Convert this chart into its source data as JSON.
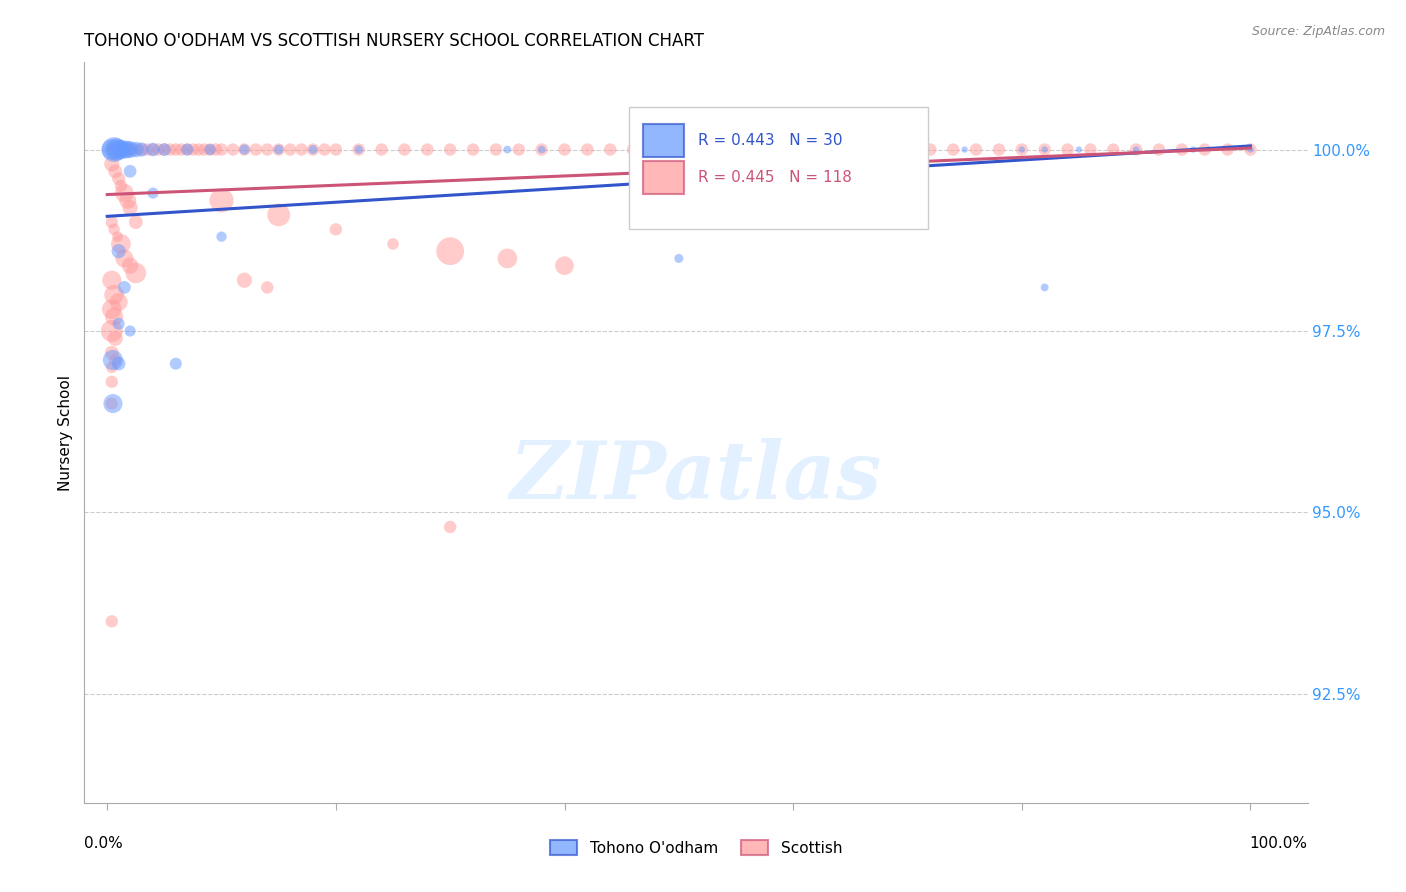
{
  "title": "TOHONO O'ODHAM VS SCOTTISH NURSERY SCHOOL CORRELATION CHART",
  "source": "Source: ZipAtlas.com",
  "ylabel": "Nursery School",
  "y_ticks": [
    92.5,
    95.0,
    97.5,
    100.0
  ],
  "y_tick_labels": [
    "92.5%",
    "95.0%",
    "97.5%",
    "100.0%"
  ],
  "xlim": [
    -0.02,
    1.05
  ],
  "ylim": [
    91.0,
    101.2
  ],
  "blue_R": 0.443,
  "blue_N": 30,
  "pink_R": 0.445,
  "pink_N": 118,
  "blue_color": "#6699ff",
  "pink_color": "#ff9999",
  "trend_blue": "#3355cc",
  "trend_pink": "#cc5577",
  "legend_blue": "Tohono O'odham",
  "legend_pink": "Scottish",
  "watermark": "ZIPatlas",
  "blue_trend_y0": 99.08,
  "blue_trend_y1": 100.05,
  "pink_trend_y0": 99.38,
  "pink_trend_y1": 100.02,
  "blue_points": [
    [
      0.004,
      100.0
    ],
    [
      0.006,
      100.0
    ],
    [
      0.008,
      100.0
    ],
    [
      0.009,
      100.0
    ],
    [
      0.012,
      100.0
    ],
    [
      0.015,
      100.0
    ],
    [
      0.018,
      100.0
    ],
    [
      0.02,
      100.0
    ],
    [
      0.025,
      100.0
    ],
    [
      0.03,
      100.0
    ],
    [
      0.04,
      100.0
    ],
    [
      0.05,
      100.0
    ],
    [
      0.07,
      100.0
    ],
    [
      0.09,
      100.0
    ],
    [
      0.12,
      100.0
    ],
    [
      0.15,
      100.0
    ],
    [
      0.18,
      100.0
    ],
    [
      0.22,
      100.0
    ],
    [
      0.35,
      100.0
    ],
    [
      0.38,
      100.0
    ],
    [
      0.6,
      100.0
    ],
    [
      0.65,
      100.0
    ],
    [
      0.7,
      100.0
    ],
    [
      0.75,
      100.0
    ],
    [
      0.8,
      100.0
    ],
    [
      0.82,
      100.0
    ],
    [
      0.85,
      100.0
    ],
    [
      0.9,
      100.0
    ],
    [
      0.95,
      100.0
    ],
    [
      1.0,
      100.0
    ],
    [
      0.02,
      99.7
    ],
    [
      0.04,
      99.4
    ],
    [
      0.01,
      98.6
    ],
    [
      0.015,
      98.1
    ],
    [
      0.01,
      97.6
    ],
    [
      0.02,
      97.5
    ],
    [
      0.005,
      97.1
    ],
    [
      0.005,
      96.5
    ],
    [
      0.1,
      98.8
    ],
    [
      0.5,
      98.5
    ],
    [
      0.82,
      98.1
    ],
    [
      0.01,
      97.05
    ],
    [
      0.06,
      97.05
    ]
  ],
  "blue_sizes": [
    220,
    320,
    260,
    210,
    190,
    170,
    155,
    145,
    125,
    105,
    95,
    85,
    75,
    65,
    55,
    48,
    42,
    37,
    32,
    30,
    28,
    25,
    23,
    21,
    21,
    21,
    21,
    21,
    21,
    21,
    85,
    65,
    105,
    85,
    75,
    65,
    210,
    190,
    55,
    42,
    32,
    95,
    75
  ],
  "pink_points": [
    [
      0.004,
      100.0
    ],
    [
      0.006,
      100.0
    ],
    [
      0.008,
      100.0
    ],
    [
      0.01,
      100.0
    ],
    [
      0.012,
      100.0
    ],
    [
      0.015,
      100.0
    ],
    [
      0.018,
      100.0
    ],
    [
      0.02,
      100.0
    ],
    [
      0.025,
      100.0
    ],
    [
      0.03,
      100.0
    ],
    [
      0.035,
      100.0
    ],
    [
      0.04,
      100.0
    ],
    [
      0.045,
      100.0
    ],
    [
      0.05,
      100.0
    ],
    [
      0.055,
      100.0
    ],
    [
      0.06,
      100.0
    ],
    [
      0.065,
      100.0
    ],
    [
      0.07,
      100.0
    ],
    [
      0.075,
      100.0
    ],
    [
      0.08,
      100.0
    ],
    [
      0.085,
      100.0
    ],
    [
      0.09,
      100.0
    ],
    [
      0.095,
      100.0
    ],
    [
      0.1,
      100.0
    ],
    [
      0.11,
      100.0
    ],
    [
      0.12,
      100.0
    ],
    [
      0.13,
      100.0
    ],
    [
      0.14,
      100.0
    ],
    [
      0.15,
      100.0
    ],
    [
      0.16,
      100.0
    ],
    [
      0.17,
      100.0
    ],
    [
      0.18,
      100.0
    ],
    [
      0.19,
      100.0
    ],
    [
      0.2,
      100.0
    ],
    [
      0.22,
      100.0
    ],
    [
      0.24,
      100.0
    ],
    [
      0.26,
      100.0
    ],
    [
      0.28,
      100.0
    ],
    [
      0.3,
      100.0
    ],
    [
      0.32,
      100.0
    ],
    [
      0.34,
      100.0
    ],
    [
      0.36,
      100.0
    ],
    [
      0.38,
      100.0
    ],
    [
      0.4,
      100.0
    ],
    [
      0.42,
      100.0
    ],
    [
      0.44,
      100.0
    ],
    [
      0.46,
      100.0
    ],
    [
      0.48,
      100.0
    ],
    [
      0.5,
      100.0
    ],
    [
      0.52,
      100.0
    ],
    [
      0.54,
      100.0
    ],
    [
      0.56,
      100.0
    ],
    [
      0.58,
      100.0
    ],
    [
      0.6,
      100.0
    ],
    [
      0.62,
      100.0
    ],
    [
      0.64,
      100.0
    ],
    [
      0.66,
      100.0
    ],
    [
      0.68,
      100.0
    ],
    [
      0.7,
      100.0
    ],
    [
      0.72,
      100.0
    ],
    [
      0.74,
      100.0
    ],
    [
      0.76,
      100.0
    ],
    [
      0.78,
      100.0
    ],
    [
      0.8,
      100.0
    ],
    [
      0.82,
      100.0
    ],
    [
      0.84,
      100.0
    ],
    [
      0.86,
      100.0
    ],
    [
      0.88,
      100.0
    ],
    [
      0.9,
      100.0
    ],
    [
      0.92,
      100.0
    ],
    [
      0.94,
      100.0
    ],
    [
      0.96,
      100.0
    ],
    [
      0.98,
      100.0
    ],
    [
      1.0,
      100.0
    ],
    [
      0.004,
      99.8
    ],
    [
      0.007,
      99.7
    ],
    [
      0.01,
      99.6
    ],
    [
      0.012,
      99.5
    ],
    [
      0.015,
      99.4
    ],
    [
      0.018,
      99.3
    ],
    [
      0.02,
      99.2
    ],
    [
      0.025,
      99.0
    ],
    [
      0.004,
      99.0
    ],
    [
      0.006,
      98.9
    ],
    [
      0.009,
      98.8
    ],
    [
      0.012,
      98.7
    ],
    [
      0.015,
      98.5
    ],
    [
      0.02,
      98.4
    ],
    [
      0.025,
      98.3
    ],
    [
      0.004,
      98.2
    ],
    [
      0.006,
      98.0
    ],
    [
      0.01,
      97.9
    ],
    [
      0.004,
      97.8
    ],
    [
      0.006,
      97.7
    ],
    [
      0.004,
      97.5
    ],
    [
      0.007,
      97.4
    ],
    [
      0.004,
      97.2
    ],
    [
      0.007,
      97.1
    ],
    [
      0.004,
      97.0
    ],
    [
      0.1,
      99.3
    ],
    [
      0.15,
      99.1
    ],
    [
      0.2,
      98.9
    ],
    [
      0.25,
      98.7
    ],
    [
      0.3,
      98.6
    ],
    [
      0.35,
      98.5
    ],
    [
      0.4,
      98.4
    ],
    [
      0.12,
      98.2
    ],
    [
      0.14,
      98.1
    ],
    [
      0.004,
      96.8
    ],
    [
      0.004,
      96.5
    ],
    [
      0.3,
      94.8
    ],
    [
      0.004,
      93.5
    ]
  ],
  "pink_sizes": [
    80,
    80,
    80,
    80,
    80,
    80,
    80,
    80,
    80,
    80,
    80,
    80,
    80,
    80,
    80,
    80,
    80,
    80,
    80,
    80,
    80,
    80,
    80,
    80,
    80,
    80,
    80,
    80,
    80,
    80,
    80,
    80,
    80,
    80,
    80,
    80,
    80,
    80,
    80,
    80,
    80,
    80,
    80,
    80,
    80,
    80,
    80,
    80,
    80,
    80,
    80,
    80,
    80,
    80,
    80,
    80,
    80,
    80,
    80,
    80,
    80,
    80,
    80,
    80,
    80,
    80,
    80,
    80,
    80,
    80,
    80,
    80,
    80,
    80,
    120,
    100,
    90,
    80,
    180,
    150,
    120,
    100,
    80,
    70,
    60,
    200,
    170,
    140,
    220,
    190,
    200,
    170,
    200,
    170,
    250,
    120,
    100,
    80,
    70,
    300,
    270,
    80,
    70,
    400,
    200,
    180,
    120
  ]
}
